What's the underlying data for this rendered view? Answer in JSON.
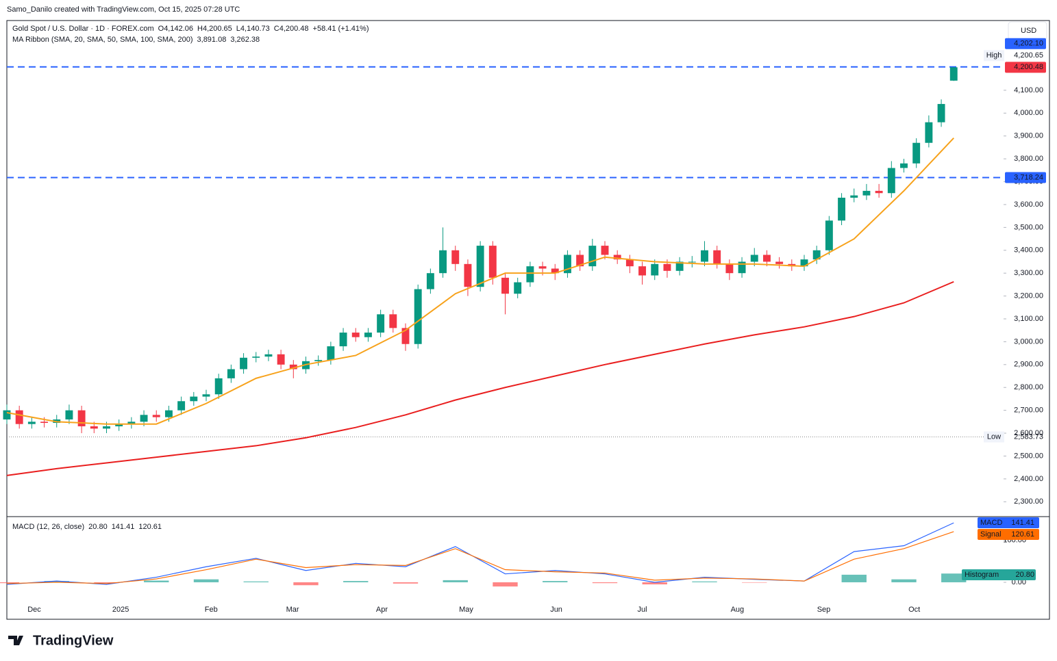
{
  "header": {
    "caption": "Samo_Danilo created with TradingView.com, Oct 15, 2025 07:28 UTC",
    "logo": "TradingView",
    "currency": "USD"
  },
  "legend": {
    "symbol": "Gold Spot / U.S. Dollar · 1D · FOREX.com",
    "ohlc": [
      {
        "key": "O",
        "text": "4,142.06"
      },
      {
        "key": "H",
        "text": "4,200.65"
      },
      {
        "key": "L",
        "text": "4,140.73"
      },
      {
        "key": "C",
        "text": "4,200.48"
      }
    ],
    "change": "+58.41 (+1.41%)",
    "ma_label": "MA Ribbon (SMA, 20, SMA, 50, SMA, 100, SMA, 200)",
    "ma_values": [
      "3,891.08",
      "3,262.38"
    ],
    "macd_label": "MACD (12, 26, close)",
    "macd_values": [
      "20.80",
      "141.41",
      "120.61"
    ]
  },
  "chart_data": [
    {
      "type": "candlestick",
      "up_color": "#089981",
      "down_color": "#f23645",
      "xlim": [
        0,
        240
      ],
      "xticks": [
        {
          "value": 6.6,
          "label": "Dec"
        },
        {
          "value": 27.4,
          "label": "2025"
        },
        {
          "value": 49.2,
          "label": "Feb"
        },
        {
          "value": 68.8,
          "label": "Mar"
        },
        {
          "value": 90.3,
          "label": "Apr"
        },
        {
          "value": 110.6,
          "label": "May"
        },
        {
          "value": 132.3,
          "label": "Jun"
        },
        {
          "value": 153,
          "label": "Jul"
        },
        {
          "value": 175.9,
          "label": "Aug"
        },
        {
          "value": 196.7,
          "label": "Sep"
        },
        {
          "value": 218.5,
          "label": "Oct"
        }
      ],
      "ylim": [
        2235,
        4405
      ],
      "yticks": [
        {
          "value": 2300,
          "label": "2,300.00"
        },
        {
          "value": 2400,
          "label": "2,400.00"
        },
        {
          "value": 2500,
          "label": "2,500.00"
        },
        {
          "value": 2600,
          "label": "2,600.00"
        },
        {
          "value": 2700,
          "label": "2,700.00"
        },
        {
          "value": 2800,
          "label": "2,800.00"
        },
        {
          "value": 2900,
          "label": "2,900.00"
        },
        {
          "value": 3000,
          "label": "3,000.00"
        },
        {
          "value": 3100,
          "label": "3,100.00"
        },
        {
          "value": 3200,
          "label": "3,200.00"
        },
        {
          "value": 3300,
          "label": "3,300.00"
        },
        {
          "value": 3400,
          "label": "3,400.00"
        },
        {
          "value": 3500,
          "label": "3,500.00"
        },
        {
          "value": 3600,
          "label": "3,600.00"
        },
        {
          "value": 3700,
          "label": "3,700.00"
        },
        {
          "value": 3800,
          "label": "3,800.00"
        },
        {
          "value": 3900,
          "label": "3,900.00"
        },
        {
          "value": 4000,
          "label": "4,000.00"
        },
        {
          "value": 4100,
          "label": "4,100.00"
        }
      ],
      "x": [
        0,
        3,
        6,
        9,
        12,
        15,
        18,
        21,
        24,
        27,
        30,
        33,
        36,
        39,
        42,
        45,
        48,
        51,
        54,
        57,
        60,
        63,
        66,
        69,
        72,
        75,
        78,
        81,
        84,
        87,
        90,
        93,
        96,
        99,
        102,
        105,
        108,
        111,
        114,
        117,
        120,
        123,
        126,
        129,
        132,
        135,
        138,
        141,
        144,
        147,
        150,
        153,
        156,
        159,
        162,
        165,
        168,
        171,
        174,
        177,
        180,
        183,
        186,
        189,
        192,
        195,
        198,
        201,
        204,
        207,
        210,
        213,
        216,
        219,
        222,
        225,
        228
      ],
      "open": [
        2660,
        2700,
        2640,
        2650,
        2645,
        2660,
        2700,
        2630,
        2620,
        2630,
        2640,
        2650,
        2680,
        2670,
        2700,
        2740,
        2760,
        2770,
        2840,
        2880,
        2930,
        2935,
        2945,
        2900,
        2880,
        2915,
        2920,
        2980,
        3040,
        3020,
        3040,
        3120,
        3060,
        2990,
        3230,
        3300,
        3400,
        3340,
        3240,
        3420,
        3280,
        3210,
        3260,
        3330,
        3320,
        3300,
        3380,
        3330,
        3420,
        3380,
        3360,
        3330,
        3290,
        3340,
        3310,
        3350,
        3350,
        3400,
        3340,
        3300,
        3350,
        3380,
        3350,
        3340,
        3330,
        3360,
        3400,
        3530,
        3630,
        3640,
        3660,
        3650,
        3760,
        3780,
        3870,
        3960,
        4142.06
      ],
      "high": [
        2725,
        2720,
        2670,
        2670,
        2680,
        2725,
        2720,
        2650,
        2650,
        2660,
        2670,
        2700,
        2700,
        2720,
        2760,
        2780,
        2790,
        2860,
        2900,
        2950,
        2955,
        2965,
        2965,
        2920,
        2935,
        2940,
        3000,
        3060,
        3060,
        3060,
        3140,
        3140,
        3080,
        3250,
        3320,
        3500,
        3420,
        3360,
        3440,
        3440,
        3300,
        3280,
        3350,
        3350,
        3340,
        3400,
        3400,
        3450,
        3440,
        3400,
        3380,
        3350,
        3360,
        3360,
        3370,
        3375,
        3440,
        3420,
        3360,
        3370,
        3410,
        3400,
        3370,
        3360,
        3380,
        3420,
        3550,
        3650,
        3670,
        3690,
        3690,
        3790,
        3800,
        3890,
        3990,
        4060,
        4200.65
      ],
      "low": [
        2640,
        2620,
        2620,
        2625,
        2625,
        2640,
        2600,
        2600,
        2600,
        2610,
        2620,
        2630,
        2650,
        2650,
        2680,
        2720,
        2740,
        2750,
        2820,
        2860,
        2910,
        2915,
        2880,
        2840,
        2860,
        2895,
        2900,
        2960,
        3000,
        3000,
        3020,
        3040,
        2960,
        2970,
        3210,
        3280,
        3310,
        3200,
        3220,
        3250,
        3120,
        3190,
        3240,
        3290,
        3270,
        3280,
        3310,
        3310,
        3360,
        3340,
        3300,
        3250,
        3270,
        3280,
        3290,
        3325,
        3330,
        3320,
        3270,
        3280,
        3330,
        3330,
        3320,
        3310,
        3310,
        3340,
        3380,
        3510,
        3610,
        3620,
        3630,
        3630,
        3740,
        3760,
        3850,
        3940,
        4140.73
      ],
      "close": [
        2700,
        2640,
        2650,
        2645,
        2660,
        2700,
        2630,
        2620,
        2630,
        2640,
        2650,
        2680,
        2670,
        2700,
        2740,
        2760,
        2770,
        2840,
        2880,
        2930,
        2935,
        2945,
        2900,
        2880,
        2915,
        2920,
        2980,
        3040,
        3020,
        3040,
        3120,
        3060,
        2990,
        3230,
        3300,
        3400,
        3340,
        3240,
        3420,
        3280,
        3210,
        3260,
        3330,
        3320,
        3300,
        3380,
        3330,
        3420,
        3380,
        3360,
        3330,
        3290,
        3340,
        3310,
        3350,
        3350,
        3400,
        3340,
        3300,
        3350,
        3380,
        3350,
        3340,
        3330,
        3360,
        3400,
        3530,
        3630,
        3640,
        3660,
        3650,
        3760,
        3780,
        3870,
        3960,
        4040,
        4200.48
      ],
      "last_label": "4,200.48",
      "overlays": [
        {
          "color": "#f7a21b",
          "x": [
            0,
            12,
            24,
            36,
            48,
            60,
            72,
            84,
            96,
            108,
            120,
            132,
            144,
            156,
            168,
            180,
            192,
            204,
            216,
            228
          ],
          "values": [
            2690,
            2650,
            2640,
            2640,
            2730,
            2840,
            2900,
            2940,
            3050,
            3210,
            3300,
            3300,
            3370,
            3350,
            3340,
            3340,
            3330,
            3450,
            3660,
            3891.08
          ]
        },
        {
          "color": "#e91e1e",
          "x": [
            0,
            12,
            24,
            36,
            48,
            60,
            72,
            84,
            96,
            108,
            120,
            132,
            144,
            156,
            168,
            180,
            192,
            204,
            216,
            228
          ],
          "values": [
            2415,
            2445,
            2470,
            2495,
            2520,
            2545,
            2580,
            2625,
            2680,
            2745,
            2800,
            2850,
            2900,
            2945,
            2990,
            3030,
            3065,
            3110,
            3170,
            3262.38
          ]
        }
      ],
      "levels": [
        {
          "value": 4202.1,
          "label": "4,202.10",
          "color": "#2962ff"
        },
        {
          "value": 3718.24,
          "label": "3,718.24",
          "color": "#2962ff"
        }
      ],
      "high_mark": {
        "text": "High",
        "value": 4200.65,
        "label": "4,200.65"
      },
      "low_mark": {
        "text": "Low",
        "value": 2583.73,
        "label": "2,583.73"
      }
    },
    {
      "type": "macd",
      "xlim": [
        0,
        240
      ],
      "ylim": [
        -88,
        153
      ],
      "yticks": [
        {
          "value": 0,
          "label": "0.00"
        },
        {
          "value": 100,
          "label": "100.00"
        }
      ],
      "x": [
        0,
        12,
        24,
        36,
        48,
        60,
        72,
        84,
        96,
        108,
        120,
        132,
        144,
        156,
        168,
        180,
        192,
        204,
        216,
        228
      ],
      "series": [
        {
          "name": "MACD",
          "color": "#2962ff",
          "values": [
            -5,
            3,
            -5,
            12,
            37,
            57,
            28,
            45,
            37,
            85,
            20,
            28,
            20,
            0,
            12,
            7,
            3,
            73,
            87,
            141.41
          ],
          "last_label": "141.41"
        },
        {
          "name": "Signal",
          "color": "#ff6d00",
          "values": [
            -3,
            0,
            -3,
            8,
            30,
            55,
            35,
            42,
            40,
            80,
            30,
            25,
            22,
            5,
            10,
            8,
            3,
            55,
            80,
            120.61
          ],
          "last_label": "120.61"
        }
      ],
      "histogram": {
        "name": "Histogram",
        "color": "#26a69a",
        "neg_color": "#ff5252",
        "values": [
          -2,
          3,
          -2,
          4,
          7,
          2,
          -7,
          3,
          -3,
          5,
          -10,
          3,
          -2,
          -5,
          2,
          -1,
          0,
          18,
          7,
          20.8
        ],
        "last_label": "20.80"
      }
    }
  ]
}
